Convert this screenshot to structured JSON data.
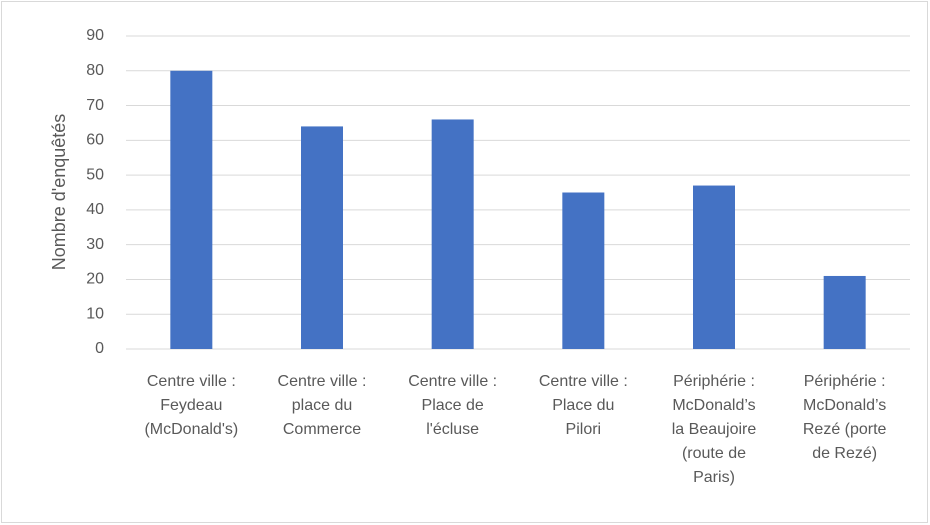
{
  "chart_data": {
    "type": "bar",
    "y_label": "Nombre d'enquêtés",
    "categories": [
      "Centre ville : Feydeau (McDonald's)",
      "Centre ville : place du Commerce",
      "Centre ville : Place de l'écluse",
      "Centre ville : Place du Pilori",
      "Périphérie : McDonald’s la Beaujoire (route de Paris)",
      "Périphérie : McDonald’s Rezé (porte de Rezé)"
    ],
    "values": [
      80,
      64,
      66,
      45,
      47,
      21
    ],
    "color": "#4472c4",
    "ylim": [
      0,
      90
    ],
    "yticks": [
      0,
      10,
      20,
      30,
      40,
      50,
      60,
      70,
      80,
      90
    ],
    "grid": true
  }
}
